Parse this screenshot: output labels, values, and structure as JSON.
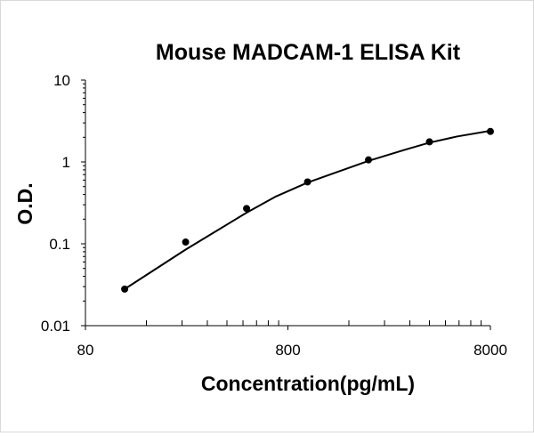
{
  "chart_data": {
    "type": "scatter",
    "title": "Mouse MADCAM-1 ELISA Kit",
    "xlabel": "Concentration(pg/mL)",
    "ylabel": "O.D.",
    "xscale": "log",
    "yscale": "log",
    "xlim": [
      80,
      8000
    ],
    "ylim": [
      0.01,
      10
    ],
    "x_ticks": [
      "80",
      "800",
      "8000"
    ],
    "y_ticks": [
      "0.01",
      "0.1",
      "1",
      "10"
    ],
    "grid": false,
    "legend": "none",
    "series": [
      {
        "x": [
          125,
          250,
          500,
          1000,
          2000,
          4000,
          8000
        ],
        "y": [
          0.028,
          0.105,
          0.27,
          0.57,
          1.06,
          1.76,
          2.36
        ]
      }
    ],
    "fit_curve": {
      "x": [
        125,
        250,
        500,
        700,
        1000,
        1500,
        2000,
        3000,
        4000,
        5500,
        8000
      ],
      "y": [
        0.028,
        0.085,
        0.24,
        0.38,
        0.56,
        0.8,
        1.03,
        1.4,
        1.72,
        2.05,
        2.4
      ]
    },
    "colors": {
      "marker": "#000000",
      "line": "#000000",
      "axis": "#000000"
    }
  }
}
